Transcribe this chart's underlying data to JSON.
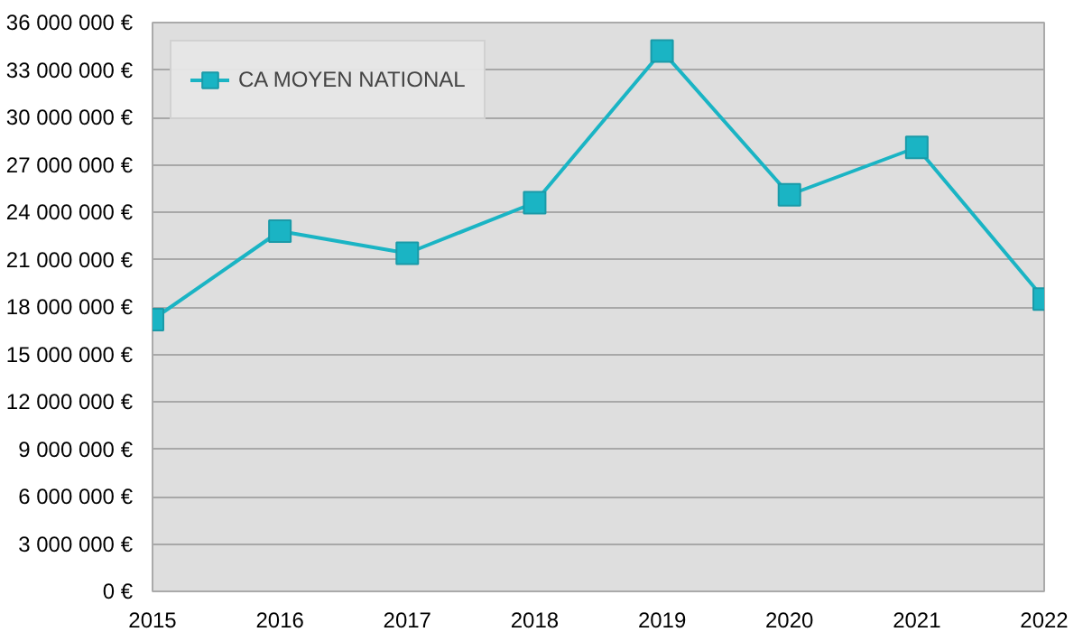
{
  "chart_data": {
    "type": "line",
    "x": [
      2015,
      2016,
      2017,
      2018,
      2019,
      2020,
      2021,
      2022
    ],
    "series": [
      {
        "name": "CA MOYEN NATIONAL",
        "color": "#1ab4c4",
        "values": [
          17200000,
          22800000,
          21400000,
          24600000,
          34200000,
          25100000,
          28100000,
          18500000
        ]
      }
    ],
    "xlim": [
      2015,
      2022
    ],
    "xticks": [
      2015,
      2016,
      2017,
      2018,
      2019,
      2020,
      2021,
      2022
    ],
    "ylim": [
      0,
      36000000
    ],
    "yticks": [
      {
        "value": 0,
        "label": "0 €"
      },
      {
        "value": 3000000,
        "label": "3 000 000 €"
      },
      {
        "value": 6000000,
        "label": "6 000 000 €"
      },
      {
        "value": 9000000,
        "label": "9 000 000 €"
      },
      {
        "value": 12000000,
        "label": "12 000 000 €"
      },
      {
        "value": 15000000,
        "label": "15 000 000 €"
      },
      {
        "value": 18000000,
        "label": "18 000 000 €"
      },
      {
        "value": 21000000,
        "label": "21 000 000 €"
      },
      {
        "value": 24000000,
        "label": "24 000 000 €"
      },
      {
        "value": 27000000,
        "label": "27 000 000 €"
      },
      {
        "value": 30000000,
        "label": "30 000 000 €"
      },
      {
        "value": 33000000,
        "label": "33 000 000 €"
      },
      {
        "value": 36000000,
        "label": "36 000 000 €"
      }
    ],
    "grid": "y",
    "legend": "top left",
    "marker": "square",
    "line_style": "solid"
  }
}
